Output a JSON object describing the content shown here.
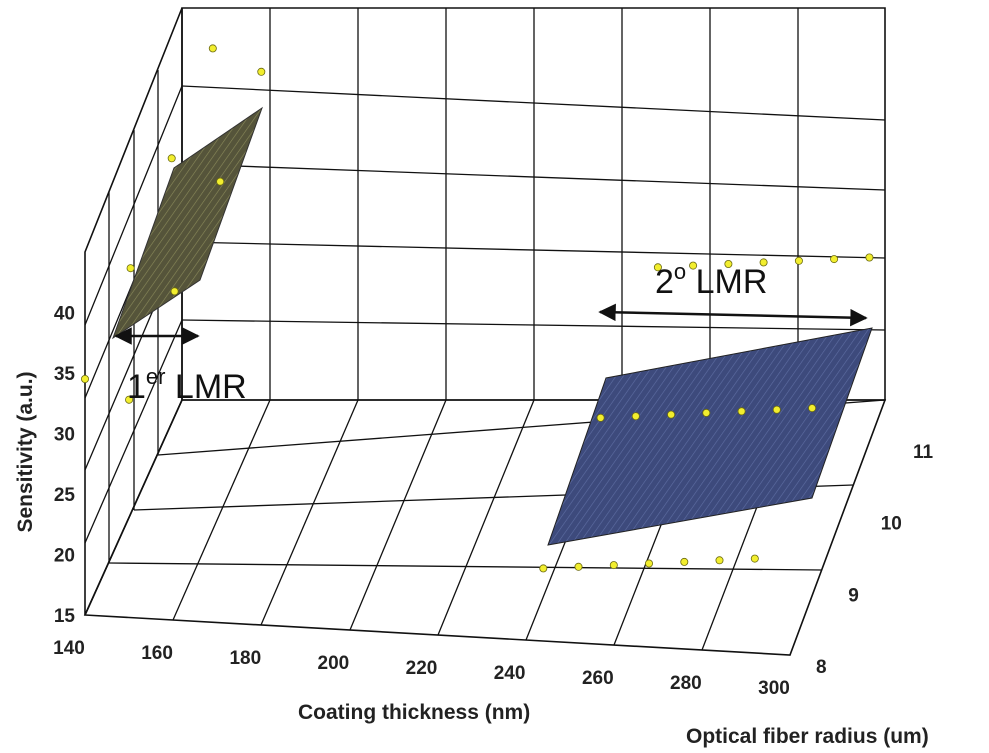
{
  "chart_data": {
    "type": "surface3d",
    "title": "",
    "xlabel": "Coating thickness (nm)",
    "ylabel": "Optical fiber radius (um)",
    "zlabel": "Sensitivity (a.u.)",
    "x_ticks": [
      "140",
      "160",
      "180",
      "200",
      "220",
      "240",
      "260",
      "280",
      "300"
    ],
    "y_ticks": [
      "8",
      "9",
      "10",
      "11"
    ],
    "z_ticks": [
      "15",
      "20",
      "25",
      "30",
      "35",
      "40"
    ],
    "xlim": [
      140,
      300
    ],
    "ylim": [
      8,
      11
    ],
    "zlim": [
      15,
      45
    ],
    "grid": true,
    "surfaces": [
      {
        "color": "#5b5a37",
        "points": [
          {
            "x": 140,
            "y": 8,
            "z": 34.5
          },
          {
            "x": 143,
            "y": 9,
            "z": 37.8
          },
          {
            "x": 145,
            "y": 10,
            "z": 41.0
          },
          {
            "x": 147,
            "y": 11,
            "z": 44.2
          },
          {
            "x": 150,
            "y": 8,
            "z": 33.0
          },
          {
            "x": 153,
            "y": 9,
            "z": 36.1
          },
          {
            "x": 156,
            "y": 10,
            "z": 39.3
          },
          {
            "x": 158,
            "y": 11,
            "z": 42.5
          }
        ]
      },
      {
        "color": "#3f4d7e",
        "points": [
          {
            "x": 244,
            "y": 8,
            "z": 21.0
          },
          {
            "x": 252,
            "y": 8,
            "z": 21.3
          },
          {
            "x": 260,
            "y": 8,
            "z": 21.6
          },
          {
            "x": 268,
            "y": 8,
            "z": 21.9
          },
          {
            "x": 276,
            "y": 8,
            "z": 22.2
          },
          {
            "x": 284,
            "y": 8,
            "z": 22.5
          },
          {
            "x": 292,
            "y": 8,
            "z": 22.8
          },
          {
            "x": 246,
            "y": 9.5,
            "z": 24.6
          },
          {
            "x": 254,
            "y": 9.5,
            "z": 24.9
          },
          {
            "x": 262,
            "y": 9.5,
            "z": 25.2
          },
          {
            "x": 270,
            "y": 9.5,
            "z": 25.5
          },
          {
            "x": 278,
            "y": 9.5,
            "z": 25.8
          },
          {
            "x": 286,
            "y": 9.5,
            "z": 26.1
          },
          {
            "x": 294,
            "y": 9.5,
            "z": 26.4
          },
          {
            "x": 248,
            "y": 11,
            "z": 28.2
          },
          {
            "x": 256,
            "y": 11,
            "z": 28.5
          },
          {
            "x": 264,
            "y": 11,
            "z": 28.8
          },
          {
            "x": 272,
            "y": 11,
            "z": 29.1
          },
          {
            "x": 280,
            "y": 11,
            "z": 29.4
          },
          {
            "x": 288,
            "y": 11,
            "z": 29.7
          },
          {
            "x": 296,
            "y": 11,
            "z": 30.0
          }
        ]
      }
    ],
    "annotations": [
      {
        "text": "1",
        "sup": "er",
        "suffix": " LMR",
        "x_from": 140,
        "x_to": 155
      },
      {
        "text": "2",
        "sup": "o",
        "suffix": " LMR",
        "x_from": 248,
        "x_to": 300
      }
    ]
  }
}
